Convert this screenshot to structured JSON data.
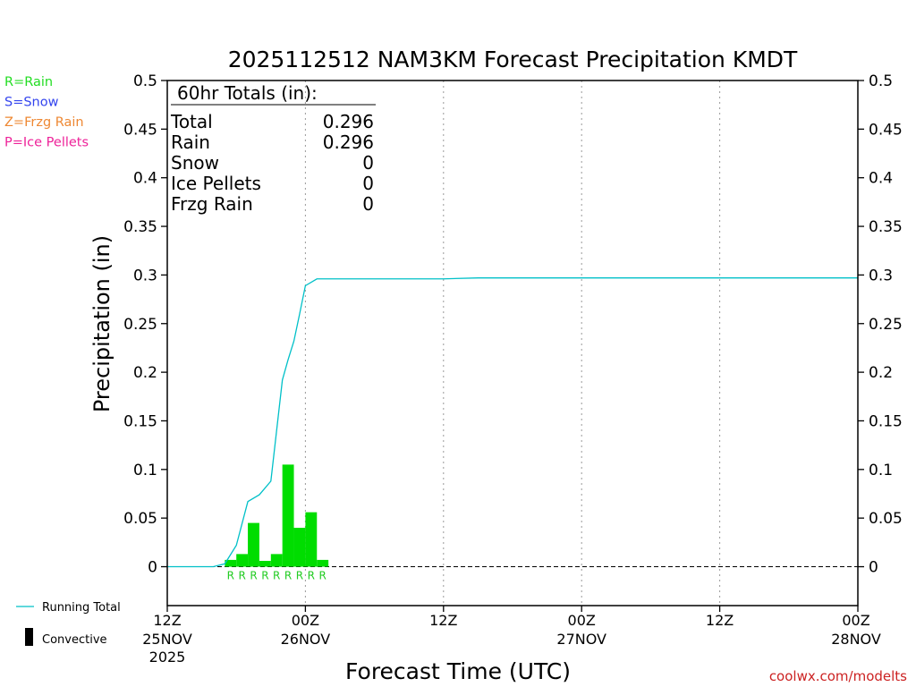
{
  "chart_data": {
    "type": "bar",
    "title": "2025112512 NAM3KM Forecast Precipitation KMDT",
    "xlabel": "Forecast Time (UTC)",
    "ylabel": "Precipitation (in)",
    "ylim": [
      -0.04,
      0.5
    ],
    "xlim": [
      0,
      60
    ],
    "yticks": [
      "0",
      "0.05",
      "0.1",
      "0.15",
      "0.2",
      "0.25",
      "0.3",
      "0.35",
      "0.4",
      "0.45",
      "0.5"
    ],
    "ytick_values": [
      0,
      0.05,
      0.1,
      0.15,
      0.2,
      0.25,
      0.3,
      0.35,
      0.4,
      0.45,
      0.5
    ],
    "xticks": [
      {
        "hour": 0,
        "line1": "12Z",
        "line2": "25NOV",
        "line3": "2025"
      },
      {
        "hour": 12,
        "line1": "00Z",
        "line2": "26NOV",
        "line3": ""
      },
      {
        "hour": 24,
        "line1": "12Z",
        "line2": "",
        "line3": ""
      },
      {
        "hour": 36,
        "line1": "00Z",
        "line2": "27NOV",
        "line3": ""
      },
      {
        "hour": 48,
        "line1": "12Z",
        "line2": "",
        "line3": ""
      },
      {
        "hour": 60,
        "line1": "00Z",
        "line2": "28NOV",
        "line3": ""
      }
    ],
    "grid": "dotted vertical",
    "rain_bars": [
      {
        "hour": 5.5,
        "value": 0.007
      },
      {
        "hour": 6.5,
        "value": 0.013
      },
      {
        "hour": 7.5,
        "value": 0.045
      },
      {
        "hour": 8.5,
        "value": 0.006
      },
      {
        "hour": 9.5,
        "value": 0.013
      },
      {
        "hour": 10.5,
        "value": 0.105
      },
      {
        "hour": 11.5,
        "value": 0.04
      },
      {
        "hour": 12.5,
        "value": 0.056
      },
      {
        "hour": 13.5,
        "value": 0.007
      }
    ],
    "ptype_label": "R",
    "running_total": {
      "name": "Running Total",
      "x": [
        0,
        4,
        5,
        6,
        7,
        8,
        9,
        10,
        10.5,
        11,
        11.5,
        12,
        13,
        17,
        19,
        21,
        24,
        27,
        30,
        40,
        50,
        60
      ],
      "y": [
        0,
        0,
        0.003,
        0.022,
        0.067,
        0.074,
        0.088,
        0.192,
        0.213,
        0.232,
        0.26,
        0.289,
        0.296,
        0.296,
        0.296,
        0.296,
        0.296,
        0.297,
        0.297,
        0.297,
        0.297,
        0.297
      ]
    },
    "totals_box": {
      "header": "60hr Totals (in):",
      "rows": [
        {
          "label": "Total",
          "value": "0.296"
        },
        {
          "label": "Rain",
          "value": "0.296"
        },
        {
          "label": "Snow",
          "value": "0"
        },
        {
          "label": "Ice Pellets",
          "value": "0"
        },
        {
          "label": "Frzg Rain",
          "value": "0"
        }
      ]
    },
    "ptype_legend": [
      {
        "text": "R=Rain",
        "color": "#22dd22"
      },
      {
        "text": "S=Snow",
        "color": "#3344ee"
      },
      {
        "text": "Z=Frzg Rain",
        "color": "#ee8833"
      },
      {
        "text": "P=Ice Pellets",
        "color": "#ee2299"
      }
    ],
    "line_legend": [
      {
        "text": "Running Total",
        "color": "#00c0c8",
        "kind": "line"
      },
      {
        "text": "Convective",
        "color": "#000000",
        "kind": "bar"
      }
    ],
    "credit": "coolwx.com/modelts",
    "colors": {
      "rain": "#00dd00",
      "running_total": "#00c0c8",
      "credit": "#cc2222",
      "grid": "#999999"
    }
  }
}
